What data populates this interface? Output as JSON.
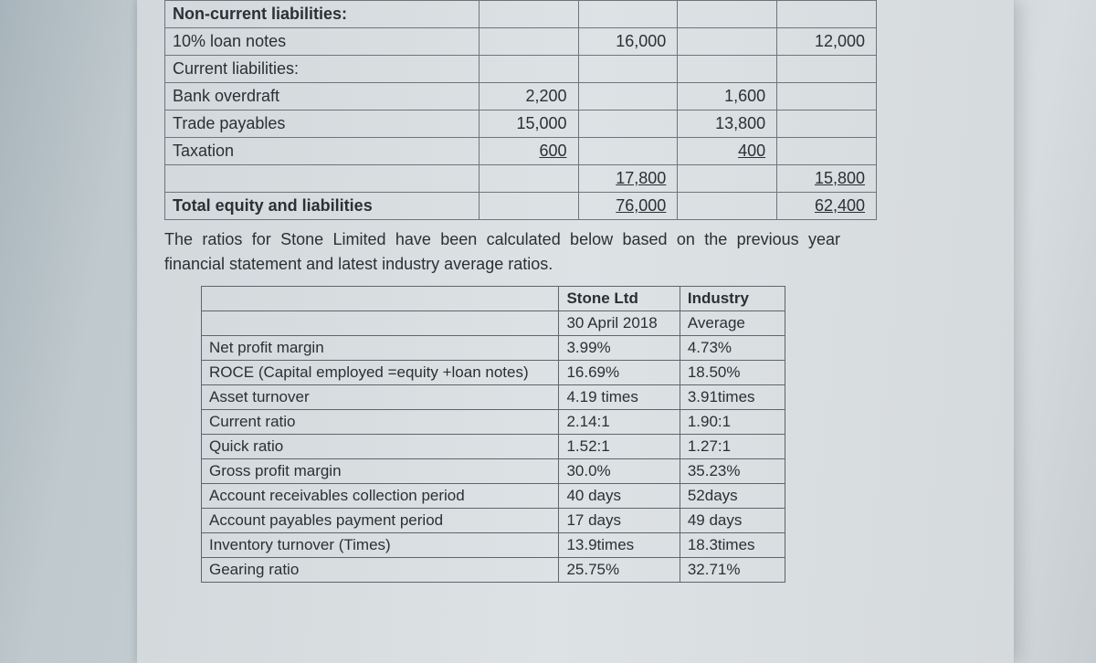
{
  "fin": {
    "nonCurrentHeader": "Non-current liabilities:",
    "loanNotes": {
      "label": "10% loan notes",
      "b": "16,000",
      "d": "12,000"
    },
    "currentHeader": "Current liabilities:",
    "bankOverdraft": {
      "label": "Bank overdraft",
      "a": "2,200",
      "c": "1,600"
    },
    "tradePayables": {
      "label": "Trade payables",
      "a": "15,000",
      "c": "13,800"
    },
    "taxation": {
      "label": "Taxation",
      "a": "600",
      "c": "400"
    },
    "subtotal": {
      "b": "17,800",
      "d": "15,800"
    },
    "total": {
      "label": "Total equity and liabilities",
      "b": "76,000",
      "d": "62,400"
    }
  },
  "paragraph": "The ratios for Stone Limited have been calculated below based on the previous year financial statement and latest industry average ratios.",
  "ratios": {
    "head1a": "Stone Ltd",
    "head1b": "Industry",
    "head2a": "30 April 2018",
    "head2b": "Average",
    "rows": [
      {
        "label": "Net profit margin",
        "a": "3.99%",
        "b": "4.73%"
      },
      {
        "label": "ROCE (Capital employed =equity +loan notes)",
        "a": "16.69%",
        "b": "18.50%"
      },
      {
        "label": "Asset turnover",
        "a": "4.19 times",
        "b": "3.91times"
      },
      {
        "label": "Current ratio",
        "a": "2.14:1",
        "b": "1.90:1"
      },
      {
        "label": "Quick ratio",
        "a": "1.52:1",
        "b": "1.27:1"
      },
      {
        "label": "Gross profit margin",
        "a": "30.0%",
        "b": "35.23%"
      },
      {
        "label": "Account receivables collection period",
        "a": "40 days",
        "b": "52days"
      },
      {
        "label": "Account payables payment period",
        "a": "17 days",
        "b": "49 days"
      },
      {
        "label": "Inventory turnover (Times)",
        "a": "13.9times",
        "b": "18.3times"
      },
      {
        "label": "Gearing ratio",
        "a": "25.75%",
        "b": "32.71%"
      }
    ]
  }
}
